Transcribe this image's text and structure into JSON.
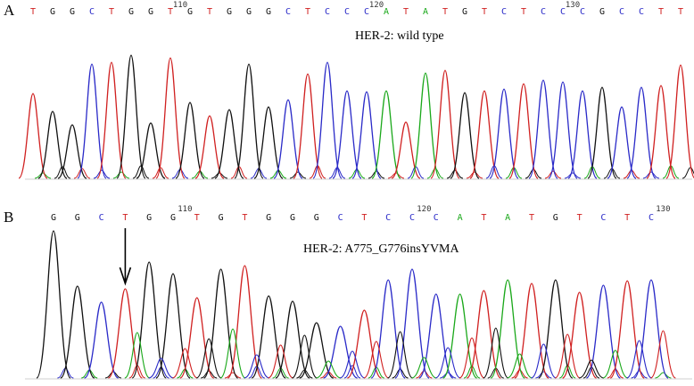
{
  "colors": {
    "A": "#1aa81a",
    "C": "#2a2ac8",
    "G": "#111111",
    "T": "#d02020"
  },
  "panels": [
    {
      "id": "A",
      "letter": "A",
      "title": "HER-2: wild type",
      "sequence": "TGGCTGGTGTGGGCTCCCATATGTCTCCCGCCTT",
      "position_marks": [
        {
          "label": "110",
          "after_base": 8
        },
        {
          "label": "120",
          "after_base": 18
        },
        {
          "label": "130",
          "after_base": 28
        }
      ],
      "arrow": null
    },
    {
      "id": "B",
      "letter": "B",
      "title": "HER-2: A775_G776insYVMA",
      "sequence": "GGCTGGTGTGGGCTCCCATATGTCTC",
      "position_marks": [
        {
          "label": "110",
          "after_base": 6
        },
        {
          "label": "120",
          "after_base": 16
        },
        {
          "label": "130",
          "after_base": 26
        }
      ],
      "arrow": {
        "at_base": 4
      }
    }
  ]
}
